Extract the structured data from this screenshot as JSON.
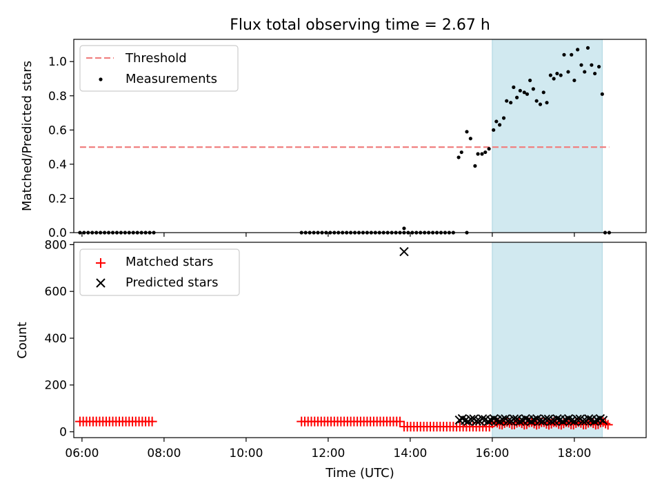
{
  "title": "Flux total observing time = 2.67 h",
  "chart_data": [
    {
      "type": "scatter",
      "panel": "top",
      "ylabel": "Matched/Predicted stars",
      "xlabel": "",
      "xlim": [
        5.8,
        19.75
      ],
      "ylim": [
        0,
        1.13
      ],
      "yticks": [
        0.0,
        0.2,
        0.4,
        0.6,
        0.8,
        1.0
      ],
      "ytick_labels": [
        "0.0",
        "0.2",
        "0.4",
        "0.6",
        "0.8",
        "1.0"
      ],
      "shaded_interval": [
        16.0,
        18.68
      ],
      "shade_color": "#d1e9f0",
      "legend": {
        "placement": "top-left",
        "entries": [
          {
            "label": "Threshold",
            "marker": "dashed-line",
            "color": "#f08080"
          },
          {
            "label": "Measurements",
            "marker": "dot",
            "color": "#000000"
          }
        ]
      },
      "threshold": {
        "name": "Threshold",
        "value": 0.5,
        "x_range": [
          5.95,
          18.85
        ],
        "color": "#f08080"
      },
      "series": [
        {
          "name": "Measurements",
          "color": "#000000",
          "zero_runs": [
            [
              5.95,
              7.75,
              0.1
            ],
            [
              11.35,
              15.1,
              0.1
            ]
          ],
          "points": [
            [
              13.85,
              0.025
            ],
            [
              15.38,
              0.0
            ],
            [
              18.75,
              0.0
            ],
            [
              18.85,
              0.0
            ],
            [
              15.18,
              0.44
            ],
            [
              15.25,
              0.47
            ],
            [
              15.38,
              0.59
            ],
            [
              15.47,
              0.55
            ],
            [
              15.58,
              0.39
            ],
            [
              15.65,
              0.46
            ],
            [
              15.75,
              0.46
            ],
            [
              15.83,
              0.47
            ],
            [
              15.92,
              0.49
            ],
            [
              16.03,
              0.6
            ],
            [
              16.1,
              0.65
            ],
            [
              16.18,
              0.63
            ],
            [
              16.28,
              0.67
            ],
            [
              16.35,
              0.77
            ],
            [
              16.45,
              0.76
            ],
            [
              16.52,
              0.85
            ],
            [
              16.6,
              0.79
            ],
            [
              16.68,
              0.83
            ],
            [
              16.78,
              0.82
            ],
            [
              16.85,
              0.81
            ],
            [
              16.92,
              0.89
            ],
            [
              17.0,
              0.84
            ],
            [
              17.08,
              0.77
            ],
            [
              17.17,
              0.75
            ],
            [
              17.25,
              0.82
            ],
            [
              17.33,
              0.76
            ],
            [
              17.42,
              0.92
            ],
            [
              17.5,
              0.9
            ],
            [
              17.58,
              0.93
            ],
            [
              17.67,
              0.92
            ],
            [
              17.75,
              1.04
            ],
            [
              17.85,
              0.94
            ],
            [
              17.93,
              1.04
            ],
            [
              18.0,
              0.89
            ],
            [
              18.08,
              1.07
            ],
            [
              18.17,
              0.98
            ],
            [
              18.25,
              0.94
            ],
            [
              18.33,
              1.08
            ],
            [
              18.42,
              0.98
            ],
            [
              18.5,
              0.93
            ],
            [
              18.6,
              0.97
            ],
            [
              18.68,
              0.81
            ]
          ]
        }
      ]
    },
    {
      "type": "scatter",
      "panel": "bottom",
      "ylabel": "Count",
      "xlabel": "Time (UTC)",
      "xlim": [
        5.8,
        19.75
      ],
      "ylim": [
        -25,
        810
      ],
      "yticks": [
        0,
        200,
        400,
        600,
        800
      ],
      "ytick_labels": [
        "0",
        "200",
        "400",
        "600",
        "800"
      ],
      "xticks": [
        6,
        8,
        10,
        12,
        14,
        16,
        18
      ],
      "xtick_labels": [
        "06:00",
        "08:00",
        "10:00",
        "12:00",
        "14:00",
        "16:00",
        "18:00"
      ],
      "shaded_interval": [
        16.0,
        18.68
      ],
      "shade_color": "#d1e9f0",
      "legend": {
        "placement": "top-left",
        "entries": [
          {
            "label": "Matched stars",
            "marker": "plus",
            "color": "#ff0000"
          },
          {
            "label": "Predicted stars",
            "marker": "x",
            "color": "#000000"
          }
        ]
      },
      "series": [
        {
          "name": "Matched stars",
          "color": "#ff0000",
          "marker": "plus",
          "runs": [
            [
              5.95,
              7.75,
              0.08,
              44
            ],
            [
              11.35,
              13.8,
              0.08,
              44
            ],
            [
              13.85,
              15.95,
              0.08,
              22
            ]
          ],
          "wave": {
            "x_range": [
              16.0,
              18.85
            ],
            "step": 0.06,
            "base": 36,
            "amplitude": 6
          }
        },
        {
          "name": "Predicted stars",
          "color": "#000000",
          "marker": "x",
          "points": [
            [
              13.85,
              770
            ]
          ],
          "wave": {
            "x_range": [
              15.2,
              18.7
            ],
            "step": 0.07,
            "base": 50,
            "amplitude": 6
          }
        }
      ]
    }
  ]
}
